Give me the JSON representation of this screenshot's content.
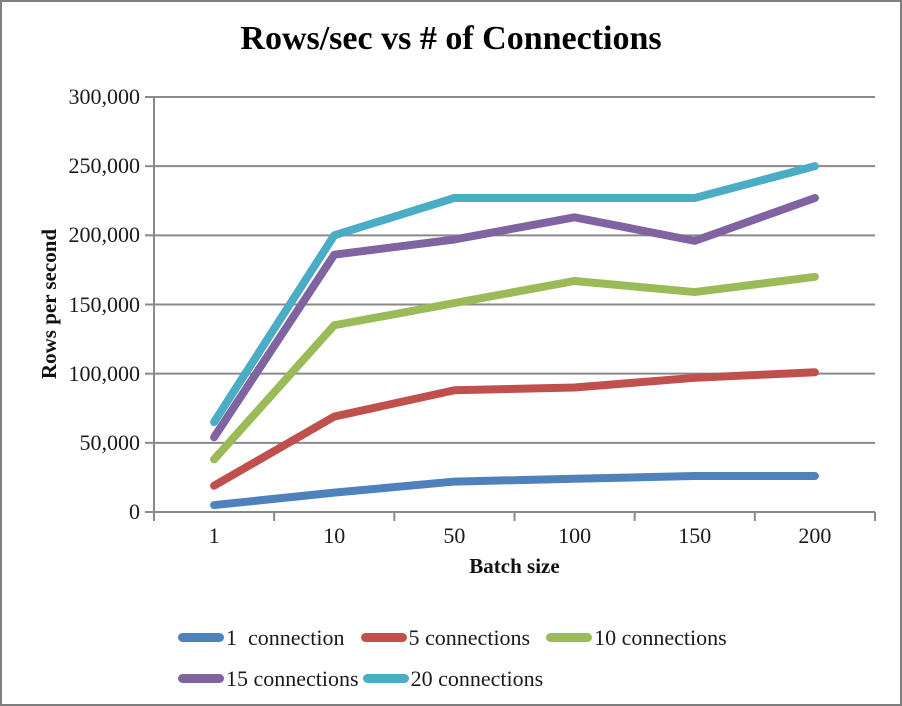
{
  "frame": {
    "background": "#ffffff",
    "border_color": "#7f7f7f"
  },
  "chart_data": {
    "type": "line",
    "title": "Rows/sec vs # of Connections",
    "xlabel": "Batch size",
    "ylabel": "Rows per second",
    "categories": [
      "1",
      "10",
      "50",
      "100",
      "150",
      "200"
    ],
    "series": [
      {
        "name": "1  connection",
        "color": "#4F81BD",
        "values": [
          5000,
          14000,
          22000,
          24000,
          26000,
          26000
        ]
      },
      {
        "name": "5 connections",
        "color": "#C0504D",
        "values": [
          19000,
          69000,
          88000,
          90000,
          97000,
          101000
        ]
      },
      {
        "name": "10 connections",
        "color": "#9BBB59",
        "values": [
          38000,
          135000,
          151000,
          167000,
          159000,
          170000
        ]
      },
      {
        "name": "15 connections",
        "color": "#8064A2",
        "values": [
          54000,
          186000,
          197000,
          213000,
          196000,
          227000
        ]
      },
      {
        "name": "20 connections",
        "color": "#4BACC6",
        "values": [
          65000,
          200000,
          227000,
          227000,
          227000,
          250000
        ]
      }
    ],
    "y_axis": {
      "min": 0,
      "max": 300000,
      "step": 50000,
      "tick_labels": [
        "0",
        "50,000",
        "100,000",
        "150,000",
        "200,000",
        "250,000",
        "300,000"
      ]
    },
    "x_axis_type": "category",
    "grid": true,
    "gridline_color": "#8A8A8A",
    "axis_color": "#8A8A8A",
    "legend_position": "bottom",
    "legend_rows": [
      [
        0,
        1,
        2
      ],
      [
        3,
        4
      ]
    ]
  }
}
